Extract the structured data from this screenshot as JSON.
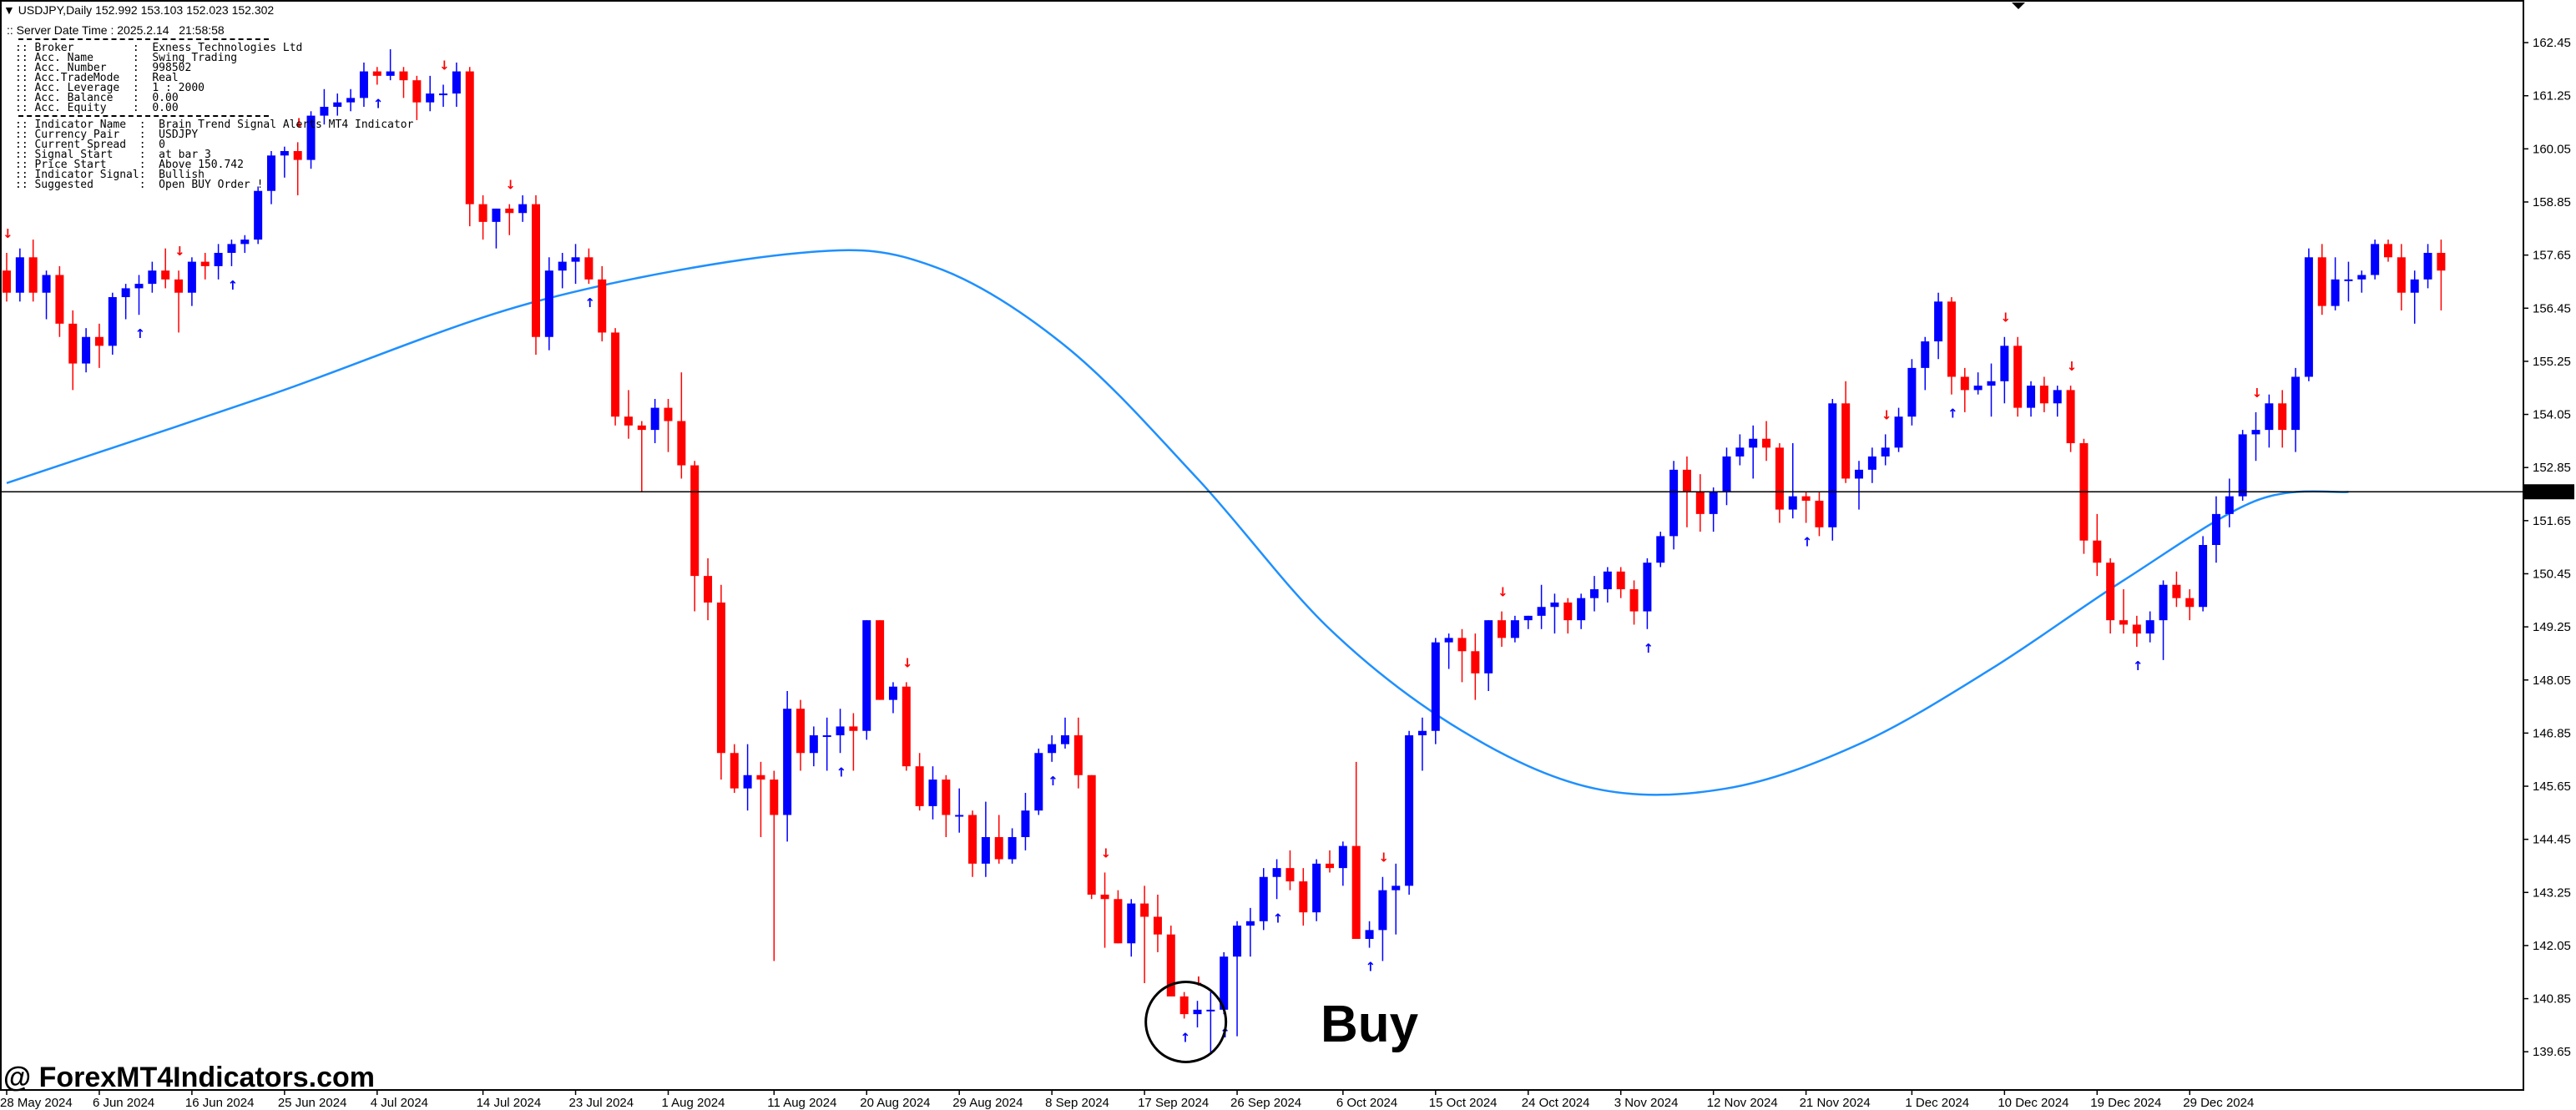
{
  "header": {
    "symbol_line": "USDJPY,Daily  152.992 153.103 152.023 152.302",
    "server_time": ":: Server Date Time : 2025.2.14   21:58:58"
  },
  "info_panel": {
    "account_rows": [
      ":: Broker         :  Exness Technologies Ltd",
      ":: Acc. Name      :  Swing Trading",
      ":: Acc. Number    :  998502",
      ":: Acc.TradeMode  :  Real",
      ":: Acc. Leverage  :  1 : 2000",
      ":: Acc. Balance   :  0.00",
      ":: Acc. Equity    :  0.00"
    ],
    "indicator_rows": [
      ":: Indicator Name  :  Brain Trend Signal Alerts MT4 Indicator",
      ":: Currency Pair   :  USDJPY",
      ":: Current Spread  :  0",
      ":: Signal Start    :  at bar 3",
      ":: Price Start     :  Above 150.742",
      ":: Indicator Signal:  Bullish",
      ":: Suggested       :  Open BUY Order !"
    ]
  },
  "watermark": "@ ForexMT4Indicators.com",
  "annotation": {
    "label": "Buy"
  },
  "colors": {
    "bull": "#0000ff",
    "bear": "#ff0000",
    "ma": "#1e90ff",
    "price_line": "#000000",
    "axis": "#000000"
  },
  "chart_data": {
    "type": "candlestick",
    "symbol": "USDJPY",
    "timeframe": "Daily",
    "current_price": 152.302,
    "ylim": [
      138.9,
      163.3
    ],
    "y_ticks": [
      139.65,
      140.85,
      142.05,
      143.25,
      144.45,
      145.65,
      146.85,
      148.05,
      149.25,
      150.45,
      151.65,
      152.85,
      154.05,
      155.25,
      156.45,
      157.65,
      158.85,
      160.05,
      161.25,
      162.45
    ],
    "x_ticks": [
      {
        "bar": 0,
        "label": "28 May 2024"
      },
      {
        "bar": 7,
        "label": "6 Jun 2024"
      },
      {
        "bar": 14,
        "label": "16 Jun 2024"
      },
      {
        "bar": 21,
        "label": "25 Jun 2024"
      },
      {
        "bar": 28,
        "label": "4 Jul 2024"
      },
      {
        "bar": 36,
        "label": "14 Jul 2024"
      },
      {
        "bar": 43,
        "label": "23 Jul 2024"
      },
      {
        "bar": 50,
        "label": "1 Aug 2024"
      },
      {
        "bar": 58,
        "label": "11 Aug 2024"
      },
      {
        "bar": 65,
        "label": "20 Aug 2024"
      },
      {
        "bar": 72,
        "label": "29 Aug 2024"
      },
      {
        "bar": 79,
        "label": "8 Sep 2024"
      },
      {
        "bar": 86,
        "label": "17 Sep 2024"
      },
      {
        "bar": 93,
        "label": "26 Sep 2024"
      },
      {
        "bar": 101,
        "label": "6 Oct 2024"
      },
      {
        "bar": 108,
        "label": "15 Oct 2024"
      },
      {
        "bar": 115,
        "label": "24 Oct 2024"
      },
      {
        "bar": 122,
        "label": "3 Nov 2024"
      },
      {
        "bar": 129,
        "label": "12 Nov 2024"
      },
      {
        "bar": 136,
        "label": "21 Nov 2024"
      },
      {
        "bar": 144,
        "label": "1 Dec 2024"
      },
      {
        "bar": 151,
        "label": "10 Dec 2024"
      },
      {
        "bar": 158,
        "label": "19 Dec 2024"
      },
      {
        "bar": 165,
        "label": "29 Dec 2024"
      }
    ],
    "candles": [
      [
        157.3,
        157.7,
        156.6,
        156.8
      ],
      [
        156.8,
        157.8,
        156.6,
        157.6
      ],
      [
        157.6,
        158.0,
        156.6,
        156.8
      ],
      [
        156.8,
        157.3,
        156.2,
        157.2
      ],
      [
        157.2,
        157.4,
        155.8,
        156.1
      ],
      [
        156.1,
        156.4,
        154.6,
        155.2
      ],
      [
        155.2,
        156.0,
        155.0,
        155.8
      ],
      [
        155.8,
        156.1,
        155.1,
        155.6
      ],
      [
        155.6,
        156.8,
        155.4,
        156.7
      ],
      [
        156.7,
        157.0,
        156.2,
        156.9
      ],
      [
        156.9,
        157.2,
        156.3,
        157.0
      ],
      [
        157.0,
        157.5,
        156.8,
        157.3
      ],
      [
        157.3,
        157.8,
        156.9,
        157.1
      ],
      [
        157.1,
        157.3,
        155.9,
        156.8
      ],
      [
        156.8,
        157.6,
        156.5,
        157.5
      ],
      [
        157.5,
        157.7,
        157.1,
        157.4
      ],
      [
        157.4,
        157.9,
        157.1,
        157.7
      ],
      [
        157.7,
        158.0,
        157.4,
        157.9
      ],
      [
        157.9,
        158.1,
        157.7,
        158.0
      ],
      [
        158.0,
        159.2,
        157.9,
        159.1
      ],
      [
        159.1,
        160.0,
        158.8,
        159.9
      ],
      [
        159.9,
        160.1,
        159.4,
        160.0
      ],
      [
        160.0,
        160.2,
        159.0,
        159.8
      ],
      [
        159.8,
        160.9,
        159.6,
        160.8
      ],
      [
        160.8,
        161.4,
        160.6,
        161.0
      ],
      [
        161.0,
        161.3,
        160.8,
        161.1
      ],
      [
        161.1,
        161.4,
        160.9,
        161.2
      ],
      [
        161.2,
        162.0,
        161.0,
        161.8
      ],
      [
        161.8,
        161.9,
        161.5,
        161.7
      ],
      [
        161.7,
        162.3,
        161.6,
        161.8
      ],
      [
        161.8,
        161.9,
        161.2,
        161.6
      ],
      [
        161.6,
        161.7,
        160.7,
        161.1
      ],
      [
        161.1,
        161.7,
        160.9,
        161.3
      ],
      [
        161.3,
        161.5,
        161.0,
        161.3
      ],
      [
        161.3,
        162.0,
        161.0,
        161.8
      ],
      [
        161.8,
        161.9,
        158.3,
        158.8
      ],
      [
        158.8,
        159.0,
        158.0,
        158.4
      ],
      [
        158.4,
        158.7,
        157.8,
        158.7
      ],
      [
        158.7,
        158.8,
        158.1,
        158.6
      ],
      [
        158.6,
        159.0,
        158.4,
        158.8
      ],
      [
        158.8,
        159.0,
        155.4,
        155.8
      ],
      [
        155.8,
        157.6,
        155.5,
        157.3
      ],
      [
        157.3,
        157.7,
        156.9,
        157.5
      ],
      [
        157.5,
        157.9,
        157.0,
        157.6
      ],
      [
        157.6,
        157.8,
        157.0,
        157.1
      ],
      [
        157.1,
        157.4,
        155.7,
        155.9
      ],
      [
        155.9,
        156.0,
        153.8,
        154.0
      ],
      [
        154.0,
        154.6,
        153.5,
        153.8
      ],
      [
        153.8,
        153.9,
        152.3,
        153.7
      ],
      [
        153.7,
        154.4,
        153.4,
        154.2
      ],
      [
        154.2,
        154.4,
        153.2,
        153.9
      ],
      [
        153.9,
        155.0,
        152.6,
        152.9
      ],
      [
        152.9,
        153.0,
        149.6,
        150.4
      ],
      [
        150.4,
        150.8,
        149.4,
        149.8
      ],
      [
        149.8,
        150.2,
        145.8,
        146.4
      ],
      [
        146.4,
        146.6,
        145.5,
        145.6
      ],
      [
        145.6,
        146.6,
        145.1,
        145.9
      ],
      [
        145.9,
        146.2,
        144.5,
        145.8
      ],
      [
        145.8,
        146.0,
        141.7,
        145.0
      ],
      [
        145.0,
        147.8,
        144.4,
        147.4
      ],
      [
        147.4,
        147.6,
        146.0,
        146.4
      ],
      [
        146.4,
        147.0,
        146.1,
        146.8
      ],
      [
        146.8,
        147.2,
        146.0,
        146.8
      ],
      [
        146.8,
        147.4,
        146.4,
        147.0
      ],
      [
        147.0,
        147.3,
        146.0,
        146.9
      ],
      [
        146.9,
        149.4,
        146.7,
        149.4
      ],
      [
        149.4,
        149.4,
        147.6,
        147.6
      ],
      [
        147.6,
        148.0,
        147.3,
        147.9
      ],
      [
        147.9,
        148.0,
        146.0,
        146.1
      ],
      [
        146.1,
        146.4,
        145.1,
        145.2
      ],
      [
        145.2,
        146.1,
        144.9,
        145.8
      ],
      [
        145.8,
        145.9,
        144.5,
        145.0
      ],
      [
        145.0,
        145.6,
        144.6,
        145.0
      ],
      [
        145.0,
        145.1,
        143.6,
        143.9
      ],
      [
        143.9,
        145.3,
        143.6,
        144.5
      ],
      [
        144.5,
        145.0,
        143.9,
        144.0
      ],
      [
        144.0,
        144.7,
        143.9,
        144.5
      ],
      [
        144.5,
        145.5,
        144.2,
        145.1
      ],
      [
        145.1,
        146.5,
        145.0,
        146.4
      ],
      [
        146.4,
        146.8,
        146.2,
        146.6
      ],
      [
        146.6,
        147.2,
        146.5,
        146.8
      ],
      [
        146.8,
        147.2,
        145.6,
        145.9
      ],
      [
        145.9,
        145.9,
        143.1,
        143.2
      ],
      [
        143.2,
        143.7,
        142.0,
        143.1
      ],
      [
        143.1,
        143.3,
        142.1,
        142.1
      ],
      [
        142.1,
        143.1,
        141.8,
        143.0
      ],
      [
        143.0,
        143.4,
        141.2,
        142.7
      ],
      [
        142.7,
        143.2,
        141.9,
        142.3
      ],
      [
        142.3,
        142.5,
        140.9,
        140.9
      ],
      [
        140.9,
        141.0,
        140.4,
        140.5
      ],
      [
        140.5,
        140.8,
        140.2,
        140.6
      ],
      [
        140.6,
        141.0,
        139.6,
        140.6
      ],
      [
        140.6,
        141.9,
        140.5,
        141.8
      ],
      [
        141.8,
        142.6,
        140.0,
        142.5
      ],
      [
        142.5,
        142.9,
        141.8,
        142.6
      ],
      [
        142.6,
        143.8,
        142.4,
        143.6
      ],
      [
        143.6,
        144.0,
        143.1,
        143.8
      ],
      [
        143.8,
        144.2,
        143.3,
        143.5
      ],
      [
        143.5,
        143.8,
        142.5,
        142.8
      ],
      [
        142.8,
        144.0,
        142.6,
        143.9
      ],
      [
        143.9,
        144.2,
        143.7,
        143.8
      ],
      [
        143.8,
        144.4,
        143.4,
        144.3
      ],
      [
        144.3,
        146.2,
        142.2,
        142.2
      ],
      [
        142.2,
        142.6,
        142.0,
        142.4
      ],
      [
        142.4,
        143.6,
        141.7,
        143.3
      ],
      [
        143.3,
        143.9,
        142.3,
        143.4
      ],
      [
        143.4,
        146.9,
        143.2,
        146.8
      ],
      [
        146.8,
        147.2,
        146.0,
        146.9
      ],
      [
        146.9,
        149.0,
        146.6,
        148.9
      ],
      [
        148.9,
        149.1,
        148.3,
        149.0
      ],
      [
        149.0,
        149.2,
        148.0,
        148.7
      ],
      [
        148.7,
        149.1,
        147.6,
        148.2
      ],
      [
        148.2,
        149.4,
        147.8,
        149.4
      ],
      [
        149.4,
        149.6,
        148.8,
        149.0
      ],
      [
        149.0,
        149.5,
        148.9,
        149.4
      ],
      [
        149.4,
        149.5,
        149.2,
        149.5
      ],
      [
        149.5,
        150.2,
        149.2,
        149.7
      ],
      [
        149.7,
        150.0,
        149.1,
        149.8
      ],
      [
        149.8,
        149.9,
        149.1,
        149.4
      ],
      [
        149.4,
        150.0,
        149.2,
        149.9
      ],
      [
        149.9,
        150.4,
        149.6,
        150.1
      ],
      [
        150.1,
        150.6,
        149.8,
        150.5
      ],
      [
        150.5,
        150.6,
        149.9,
        150.1
      ],
      [
        150.1,
        150.3,
        149.3,
        149.6
      ],
      [
        149.6,
        150.8,
        149.2,
        150.7
      ],
      [
        150.7,
        151.4,
        150.6,
        151.3
      ],
      [
        151.3,
        153.0,
        151.0,
        152.8
      ],
      [
        152.8,
        153.1,
        151.5,
        152.3
      ],
      [
        152.3,
        152.7,
        151.4,
        151.8
      ],
      [
        151.8,
        152.4,
        151.4,
        152.3
      ],
      [
        152.3,
        153.3,
        152.0,
        153.1
      ],
      [
        153.1,
        153.6,
        152.9,
        153.3
      ],
      [
        153.3,
        153.8,
        152.6,
        153.5
      ],
      [
        153.5,
        153.9,
        153.0,
        153.3
      ],
      [
        153.3,
        153.4,
        151.6,
        151.9
      ],
      [
        151.9,
        153.4,
        151.7,
        152.2
      ],
      [
        152.2,
        152.3,
        151.6,
        152.1
      ],
      [
        152.1,
        152.3,
        151.3,
        151.5
      ],
      [
        151.5,
        154.4,
        151.2,
        154.3
      ],
      [
        154.3,
        154.8,
        152.5,
        152.6
      ],
      [
        152.6,
        153.0,
        151.9,
        152.8
      ],
      [
        152.8,
        153.3,
        152.5,
        153.1
      ],
      [
        153.1,
        153.6,
        152.9,
        153.3
      ],
      [
        153.3,
        154.2,
        153.2,
        154.0
      ],
      [
        154.0,
        155.3,
        153.8,
        155.1
      ],
      [
        155.1,
        155.8,
        154.6,
        155.7
      ],
      [
        155.7,
        156.8,
        155.3,
        156.6
      ],
      [
        156.6,
        156.7,
        154.5,
        154.9
      ],
      [
        154.9,
        155.1,
        154.1,
        154.6
      ],
      [
        154.6,
        155.0,
        154.5,
        154.7
      ],
      [
        154.7,
        155.2,
        154.0,
        154.8
      ],
      [
        154.8,
        155.8,
        154.3,
        155.6
      ],
      [
        155.6,
        155.8,
        154.0,
        154.2
      ],
      [
        154.2,
        154.8,
        154.0,
        154.7
      ],
      [
        154.7,
        154.9,
        154.1,
        154.3
      ],
      [
        154.3,
        154.7,
        154.0,
        154.6
      ],
      [
        154.6,
        154.7,
        153.2,
        153.4
      ],
      [
        153.4,
        153.5,
        150.9,
        151.2
      ],
      [
        151.2,
        151.8,
        150.4,
        150.7
      ],
      [
        150.7,
        150.8,
        149.1,
        149.4
      ],
      [
        149.4,
        150.1,
        149.1,
        149.3
      ],
      [
        149.3,
        149.5,
        148.8,
        149.1
      ],
      [
        149.1,
        149.6,
        148.9,
        149.4
      ],
      [
        149.4,
        150.3,
        148.5,
        150.2
      ],
      [
        150.2,
        150.5,
        149.7,
        149.9
      ],
      [
        149.9,
        150.1,
        149.4,
        149.7
      ],
      [
        149.7,
        151.3,
        149.6,
        151.1
      ],
      [
        151.1,
        152.2,
        150.7,
        151.8
      ],
      [
        151.8,
        152.6,
        151.5,
        152.2
      ],
      [
        152.2,
        153.7,
        152.1,
        153.6
      ],
      [
        153.6,
        154.1,
        153.0,
        153.7
      ],
      [
        153.7,
        154.5,
        153.3,
        154.3
      ],
      [
        154.3,
        154.6,
        153.3,
        153.7
      ],
      [
        153.7,
        155.1,
        153.2,
        154.9
      ],
      [
        154.9,
        157.8,
        154.8,
        157.6
      ],
      [
        157.6,
        157.9,
        156.3,
        156.5
      ],
      [
        156.5,
        157.6,
        156.4,
        157.1
      ],
      [
        157.1,
        157.5,
        156.6,
        157.1
      ],
      [
        157.1,
        157.3,
        156.8,
        157.2
      ],
      [
        157.2,
        158.0,
        157.1,
        157.9
      ],
      [
        157.9,
        158.0,
        157.5,
        157.6
      ],
      [
        157.6,
        157.9,
        156.4,
        156.8
      ],
      [
        156.8,
        157.3,
        156.1,
        157.1
      ],
      [
        157.1,
        157.9,
        156.9,
        157.7
      ],
      [
        157.7,
        158.0,
        156.4,
        157.3
      ]
    ],
    "arrows_up": [
      10,
      17,
      28,
      44,
      63,
      79,
      89,
      92,
      96,
      103,
      124,
      136,
      147,
      161
    ],
    "arrows_down": [
      0,
      13,
      22,
      33,
      38,
      68,
      83,
      90,
      104,
      113,
      142,
      151,
      156,
      170
    ],
    "ma_curve": [
      {
        "bar": 0,
        "value": 152.5
      },
      {
        "bar": 20,
        "value": 154.5
      },
      {
        "bar": 40,
        "value": 156.6
      },
      {
        "bar": 60,
        "value": 157.7
      },
      {
        "bar": 70,
        "value": 157.4
      },
      {
        "bar": 80,
        "value": 155.6
      },
      {
        "bar": 90,
        "value": 152.6
      },
      {
        "bar": 100,
        "value": 149.2
      },
      {
        "bar": 110,
        "value": 146.9
      },
      {
        "bar": 120,
        "value": 145.6
      },
      {
        "bar": 130,
        "value": 145.6
      },
      {
        "bar": 140,
        "value": 146.6
      },
      {
        "bar": 150,
        "value": 148.3
      },
      {
        "bar": 160,
        "value": 150.3
      },
      {
        "bar": 170,
        "value": 152.1
      },
      {
        "bar": 177,
        "value": 152.3
      }
    ],
    "buy_marker_bar": 89
  }
}
